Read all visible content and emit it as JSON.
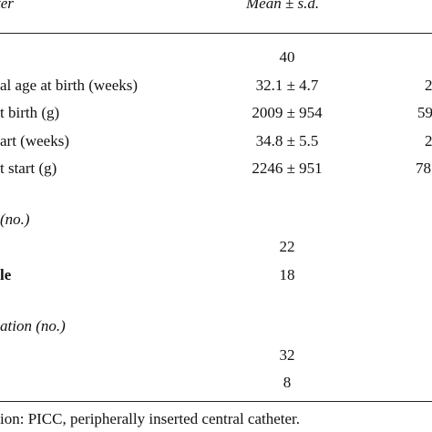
{
  "table": {
    "header": {
      "parameter": "ter",
      "mean_sd": "Mean ± s.d."
    },
    "rows": [
      {
        "label": "",
        "mean": "40",
        "extra": ""
      },
      {
        "label": "al age at birth (weeks)",
        "mean": "32.1 ± 4.7",
        "extra": "2"
      },
      {
        "label": "t birth (g)",
        "mean": "2009 ± 954",
        "extra": "59"
      },
      {
        "label": "art (weeks)",
        "mean": "34.8 ± 5.5",
        "extra": "2"
      },
      {
        "label": "t start (g)",
        "mean": "2246 ± 951",
        "extra": "78"
      }
    ],
    "section1": {
      "title": "(no.)",
      "rows": [
        {
          "label": "",
          "value": "22"
        },
        {
          "label": "le",
          "value": "18"
        }
      ]
    },
    "section2": {
      "title": "ation (no.)",
      "rows": [
        {
          "label": "",
          "value": "32"
        },
        {
          "label": "",
          "value": "8"
        }
      ]
    },
    "footnote": "ion: PICC, peripherally inserted central catheter."
  }
}
